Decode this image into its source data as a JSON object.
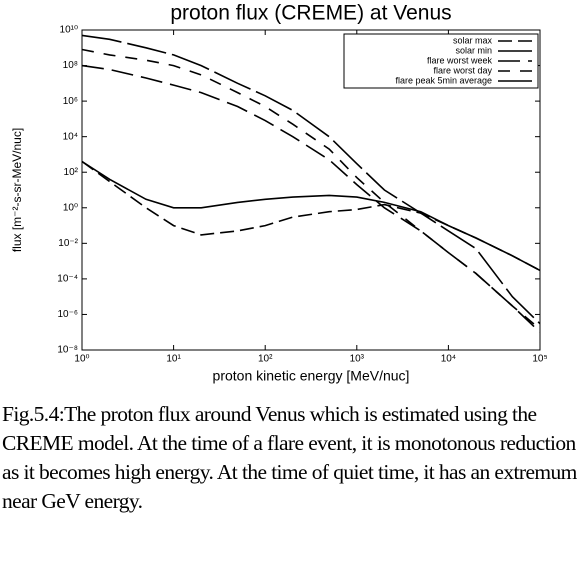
{
  "chart_data": {
    "type": "line",
    "title": "proton flux (CREME) at Venus",
    "x_label": "proton kinetic energy [MeV/nuc]",
    "y_label": "flux [m⁻²-s-sr-MeV/nuc]",
    "xscale": "log",
    "yscale": "log",
    "legend": "upper right",
    "x": [
      1,
      2,
      5,
      10,
      20,
      50,
      100,
      200,
      500,
      1000,
      2000,
      5000,
      10000,
      20000,
      50000,
      100000
    ],
    "series": [
      {
        "name": "solar max",
        "color": "#000000",
        "dash": "14 6",
        "values": [
          400,
          30,
          1,
          0.1,
          0.03,
          0.05,
          0.1,
          0.3,
          0.6,
          0.8,
          1.5,
          0.5,
          0.1,
          0.02,
          0.002,
          0.0003
        ]
      },
      {
        "name": "solar min",
        "color": "#000000",
        "dash": "none",
        "values": [
          400,
          40,
          3,
          1,
          1,
          2,
          3,
          4,
          5,
          4,
          2,
          0.6,
          0.1,
          0.02,
          0.002,
          0.0003
        ]
      },
      {
        "name": "flare worst week",
        "color": "#000000",
        "dash": "22 8",
        "values": [
          100000000,
          60000000,
          20000000,
          8000000,
          3000000,
          500000,
          80000,
          10000,
          500,
          20,
          1,
          0.05,
          0.003,
          0.0002,
          3e-06,
          1e-07
        ]
      },
      {
        "name": "flare worst day",
        "color": "#000000",
        "dash": "12 10",
        "values": [
          800000000,
          400000000,
          200000000,
          100000000,
          30000000,
          3000000,
          500000,
          50000,
          2000,
          50,
          2,
          0.05,
          0.003,
          0.0002,
          3e-06,
          1.5e-07
        ]
      },
      {
        "name": "flare peak 5min average",
        "color": "#000000",
        "dash": "40 6",
        "values": [
          5000000000,
          3000000000,
          1000000000,
          400000000,
          100000000,
          10000000,
          2000000,
          300000,
          10000,
          300,
          10,
          0.5,
          0.05,
          0.005,
          1e-05,
          3e-07
        ]
      }
    ],
    "xlim": [
      1,
      100000
    ],
    "xticks": [
      {
        "value": 1,
        "label": "10⁰"
      },
      {
        "value": 10,
        "label": "10¹"
      },
      {
        "value": 100,
        "label": "10²"
      },
      {
        "value": 1000,
        "label": "10³"
      },
      {
        "value": 10000,
        "label": "10⁴"
      },
      {
        "value": 100000,
        "label": "10⁵"
      }
    ],
    "ylim": [
      1e-08,
      10000000000
    ],
    "yticks": [
      {
        "value": 1e-08,
        "label": "10⁻⁸"
      },
      {
        "value": 1e-06,
        "label": "10⁻⁶"
      },
      {
        "value": 0.0001,
        "label": "10⁻⁴"
      },
      {
        "value": 0.01,
        "label": "10⁻²"
      },
      {
        "value": 1,
        "label": "10⁰"
      },
      {
        "value": 100,
        "label": "10²"
      },
      {
        "value": 10000,
        "label": "10⁴"
      },
      {
        "value": 1000000,
        "label": "10⁶"
      },
      {
        "value": 100000000,
        "label": "10⁸"
      },
      {
        "value": 10000000000,
        "label": "10¹⁰"
      }
    ]
  },
  "caption": "Fig.5.4:The proton flux around Venus which is estimated using the CREME model. At the time of a flare event, it is monotonous reduction as it becomes high energy. At the time of quiet time, it has an extremum near GeV energy."
}
